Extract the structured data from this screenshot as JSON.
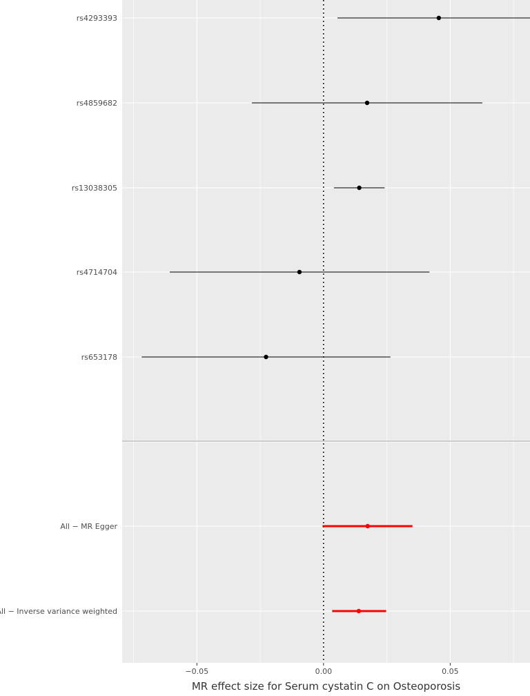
{
  "chart_data": {
    "type": "forest",
    "xlabel": "MR effect size for Serum cystatin C on Osteoporosis",
    "xlim": [
      -0.0795,
      0.0815
    ],
    "x_ticks": [
      -0.05,
      0.0,
      0.05
    ],
    "x_tick_labels": [
      "−0.05",
      "0.00",
      "0.05"
    ],
    "reference_line": 0,
    "grid": true,
    "snps": [
      {
        "label": "rs4293393",
        "estimate": 0.0455,
        "lower": 0.0055,
        "upper": 0.0815
      },
      {
        "label": "rs4859682",
        "estimate": 0.0172,
        "lower": -0.0283,
        "upper": 0.0627
      },
      {
        "label": "rs13038305",
        "estimate": 0.0141,
        "lower": 0.0041,
        "upper": 0.0241
      },
      {
        "label": "rs4714704",
        "estimate": -0.0095,
        "lower": -0.0607,
        "upper": 0.0418
      },
      {
        "label": "rs653178",
        "estimate": -0.0227,
        "lower": -0.0718,
        "upper": 0.0264
      }
    ],
    "summary": [
      {
        "label": "All − MR Egger",
        "estimate": 0.0174,
        "lower": -0.0004,
        "upper": 0.0351
      },
      {
        "label": "All − Inverse variance weighted",
        "estimate": 0.0139,
        "lower": 0.0034,
        "upper": 0.0247
      }
    ],
    "colors": {
      "panel": "#ebebeb",
      "grid": "#ffffff",
      "snp": "#000000",
      "summary": "#ff0000",
      "separator": "#c0c0c0",
      "reference": "#000000"
    }
  }
}
